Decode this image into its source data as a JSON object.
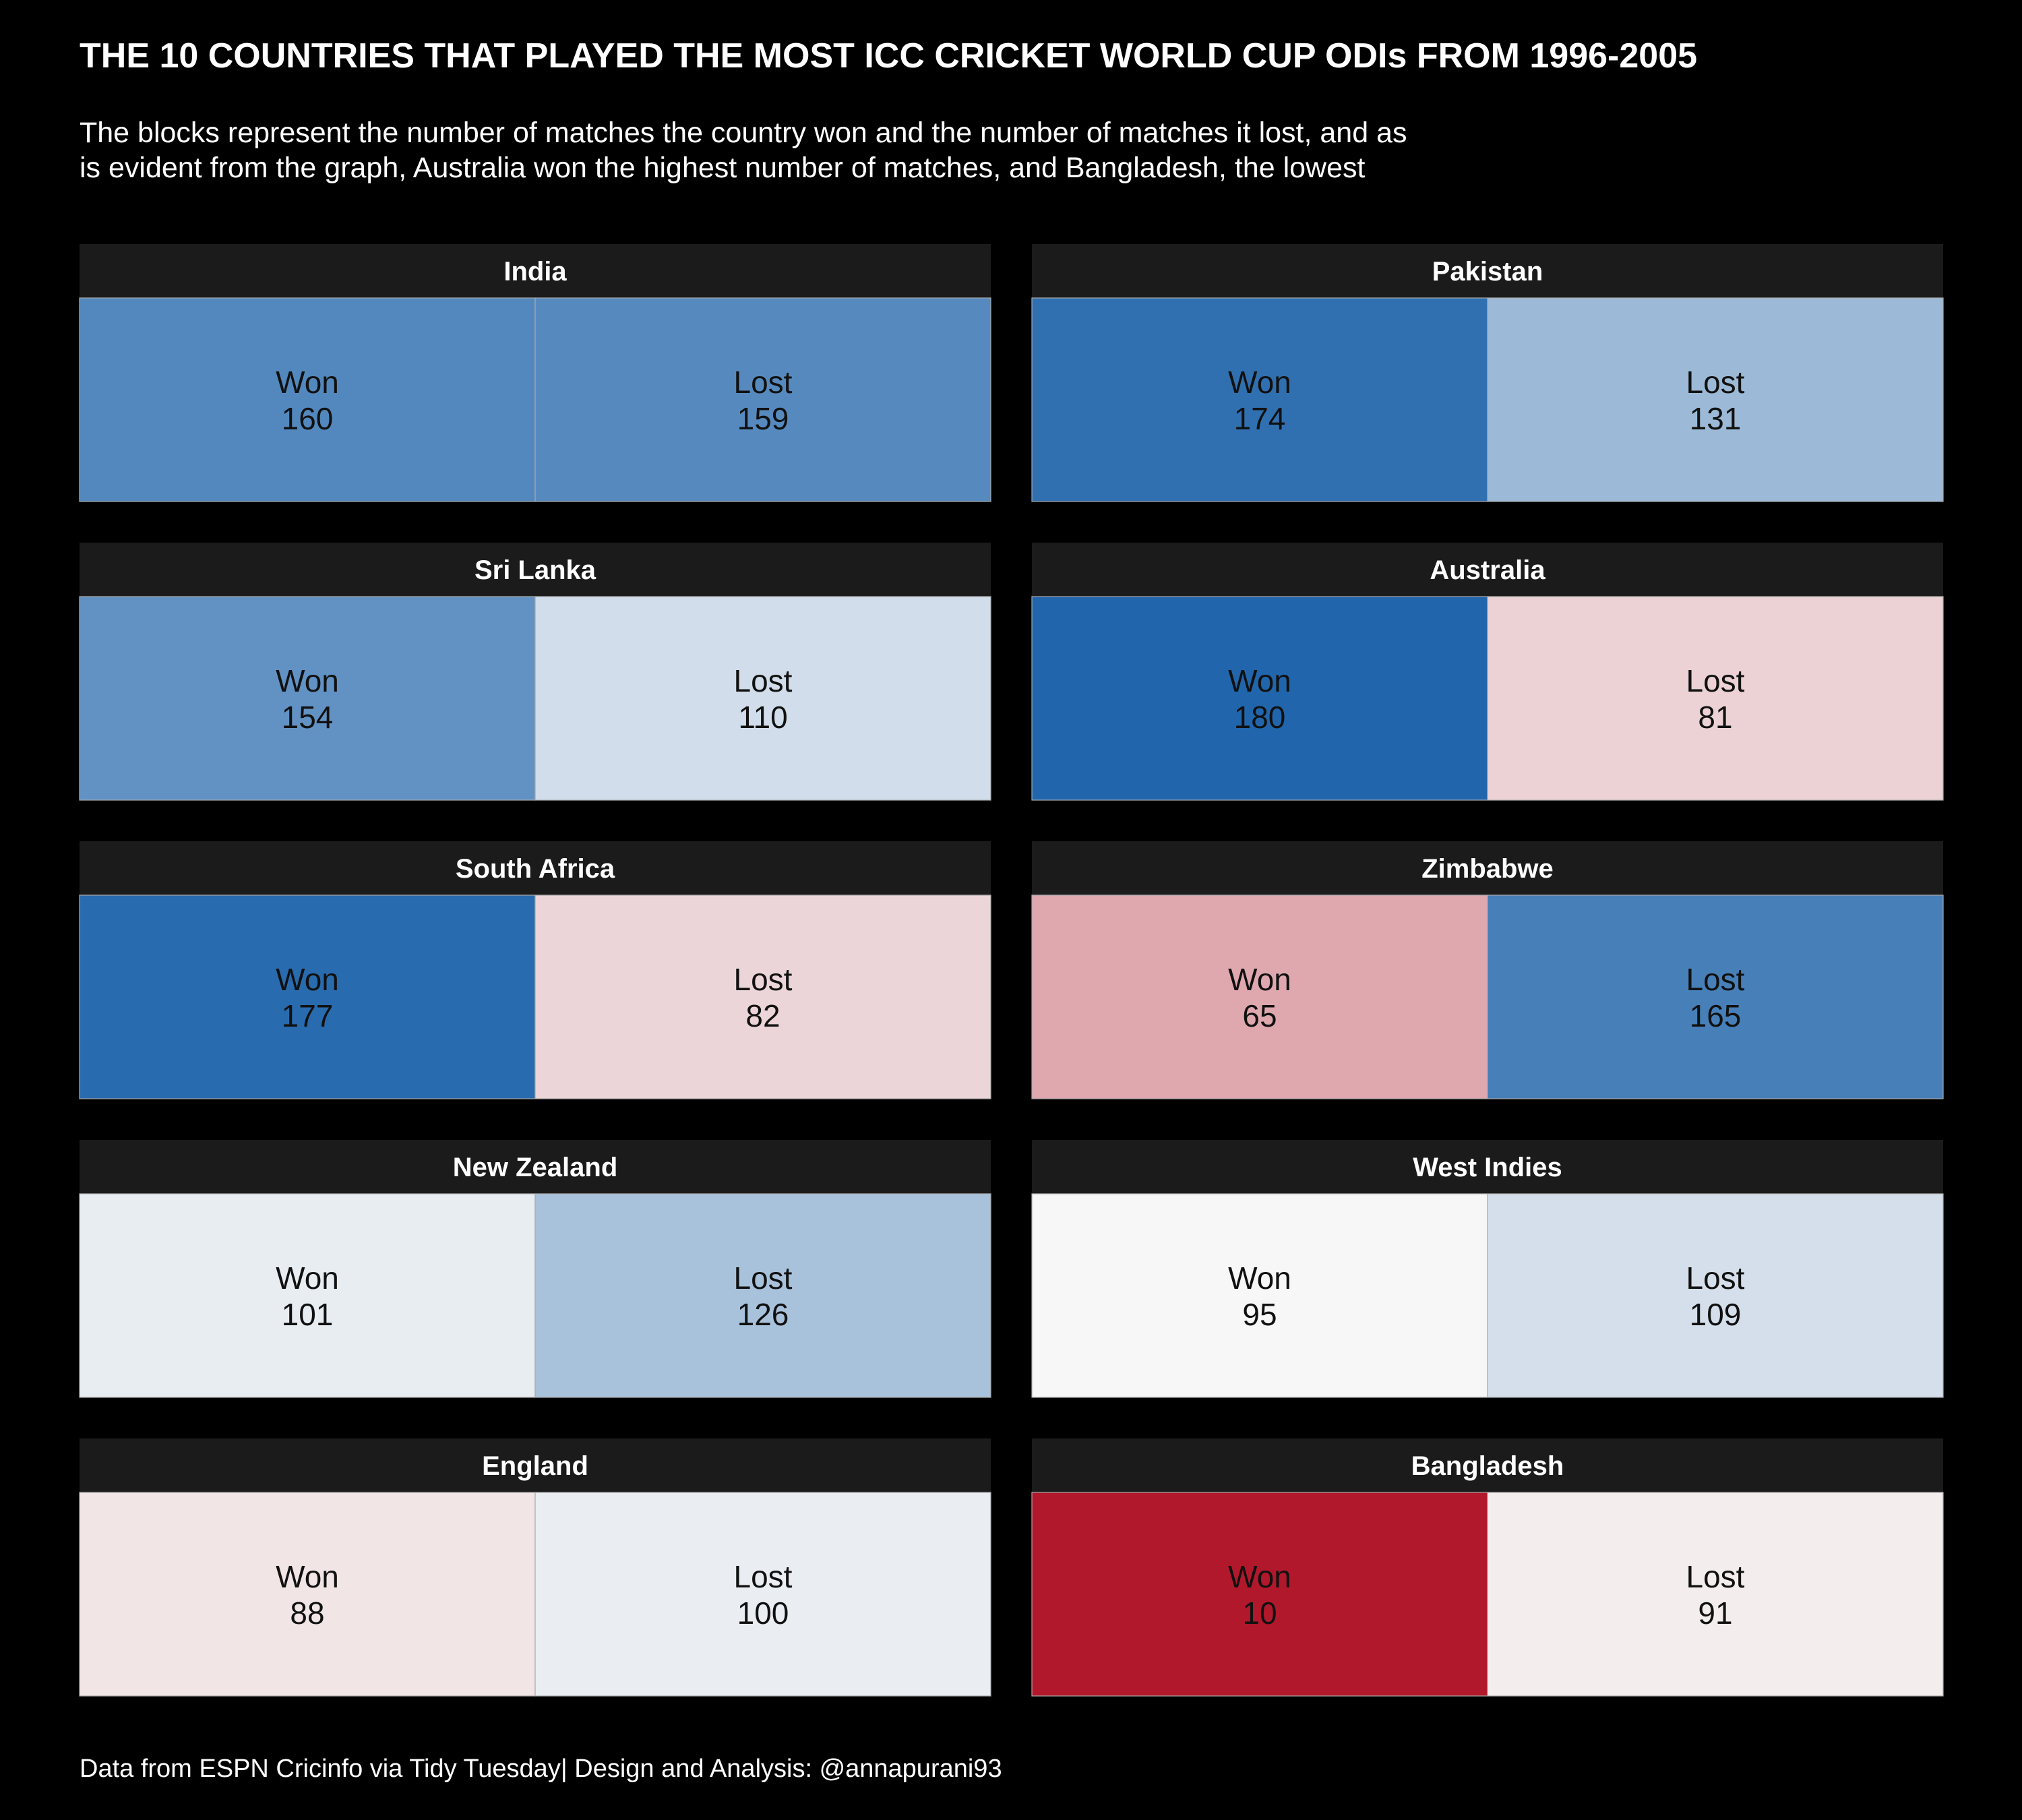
{
  "title": "THE 10 COUNTRIES THAT PLAYED THE MOST ICC CRICKET WORLD CUP ODIs FROM 1996-2005",
  "subtitle_lines": [
    "The blocks represent the number of matches the country won and the number of matches it lost, and as",
    "is evident from the graph, Australia won the highest number of matches, and Bangladesh, the lowest"
  ],
  "caption": "Data from ESPN Cricinfo via Tidy Tuesday| Design and Analysis: @annapurani93",
  "colors": {
    "background": "#000000",
    "strip": "#1b1b1b",
    "text": "#ffffff",
    "cell_text": "#111111",
    "scale_low": "#b2182b",
    "scale_mid": "#f7f7f7",
    "scale_high": "#2166ac"
  },
  "chart_data": {
    "type": "heatmap",
    "facets": [
      "India",
      "Pakistan",
      "Sri Lanka",
      "Australia",
      "South Africa",
      "Zimbabwe",
      "New Zealand",
      "West Indies",
      "England",
      "Bangladesh"
    ],
    "categories": [
      "Won",
      "Lost"
    ],
    "color_scale": {
      "min": 10,
      "mid": 95,
      "max": 180
    },
    "panels": [
      {
        "country": "India",
        "cells": [
          {
            "label": "Won",
            "value": 160
          },
          {
            "label": "Lost",
            "value": 159
          }
        ]
      },
      {
        "country": "Pakistan",
        "cells": [
          {
            "label": "Won",
            "value": 174
          },
          {
            "label": "Lost",
            "value": 131
          }
        ]
      },
      {
        "country": "Sri Lanka",
        "cells": [
          {
            "label": "Won",
            "value": 154
          },
          {
            "label": "Lost",
            "value": 110
          }
        ]
      },
      {
        "country": "Australia",
        "cells": [
          {
            "label": "Won",
            "value": 180
          },
          {
            "label": "Lost",
            "value": 81
          }
        ]
      },
      {
        "country": "South Africa",
        "cells": [
          {
            "label": "Won",
            "value": 177
          },
          {
            "label": "Lost",
            "value": 82
          }
        ]
      },
      {
        "country": "Zimbabwe",
        "cells": [
          {
            "label": "Won",
            "value": 65
          },
          {
            "label": "Lost",
            "value": 165
          }
        ]
      },
      {
        "country": "New Zealand",
        "cells": [
          {
            "label": "Won",
            "value": 101
          },
          {
            "label": "Lost",
            "value": 126
          }
        ]
      },
      {
        "country": "West Indies",
        "cells": [
          {
            "label": "Won",
            "value": 95
          },
          {
            "label": "Lost",
            "value": 109
          }
        ]
      },
      {
        "country": "England",
        "cells": [
          {
            "label": "Won",
            "value": 88
          },
          {
            "label": "Lost",
            "value": 100
          }
        ]
      },
      {
        "country": "Bangladesh",
        "cells": [
          {
            "label": "Won",
            "value": 10
          },
          {
            "label": "Lost",
            "value": 91
          }
        ]
      }
    ]
  }
}
